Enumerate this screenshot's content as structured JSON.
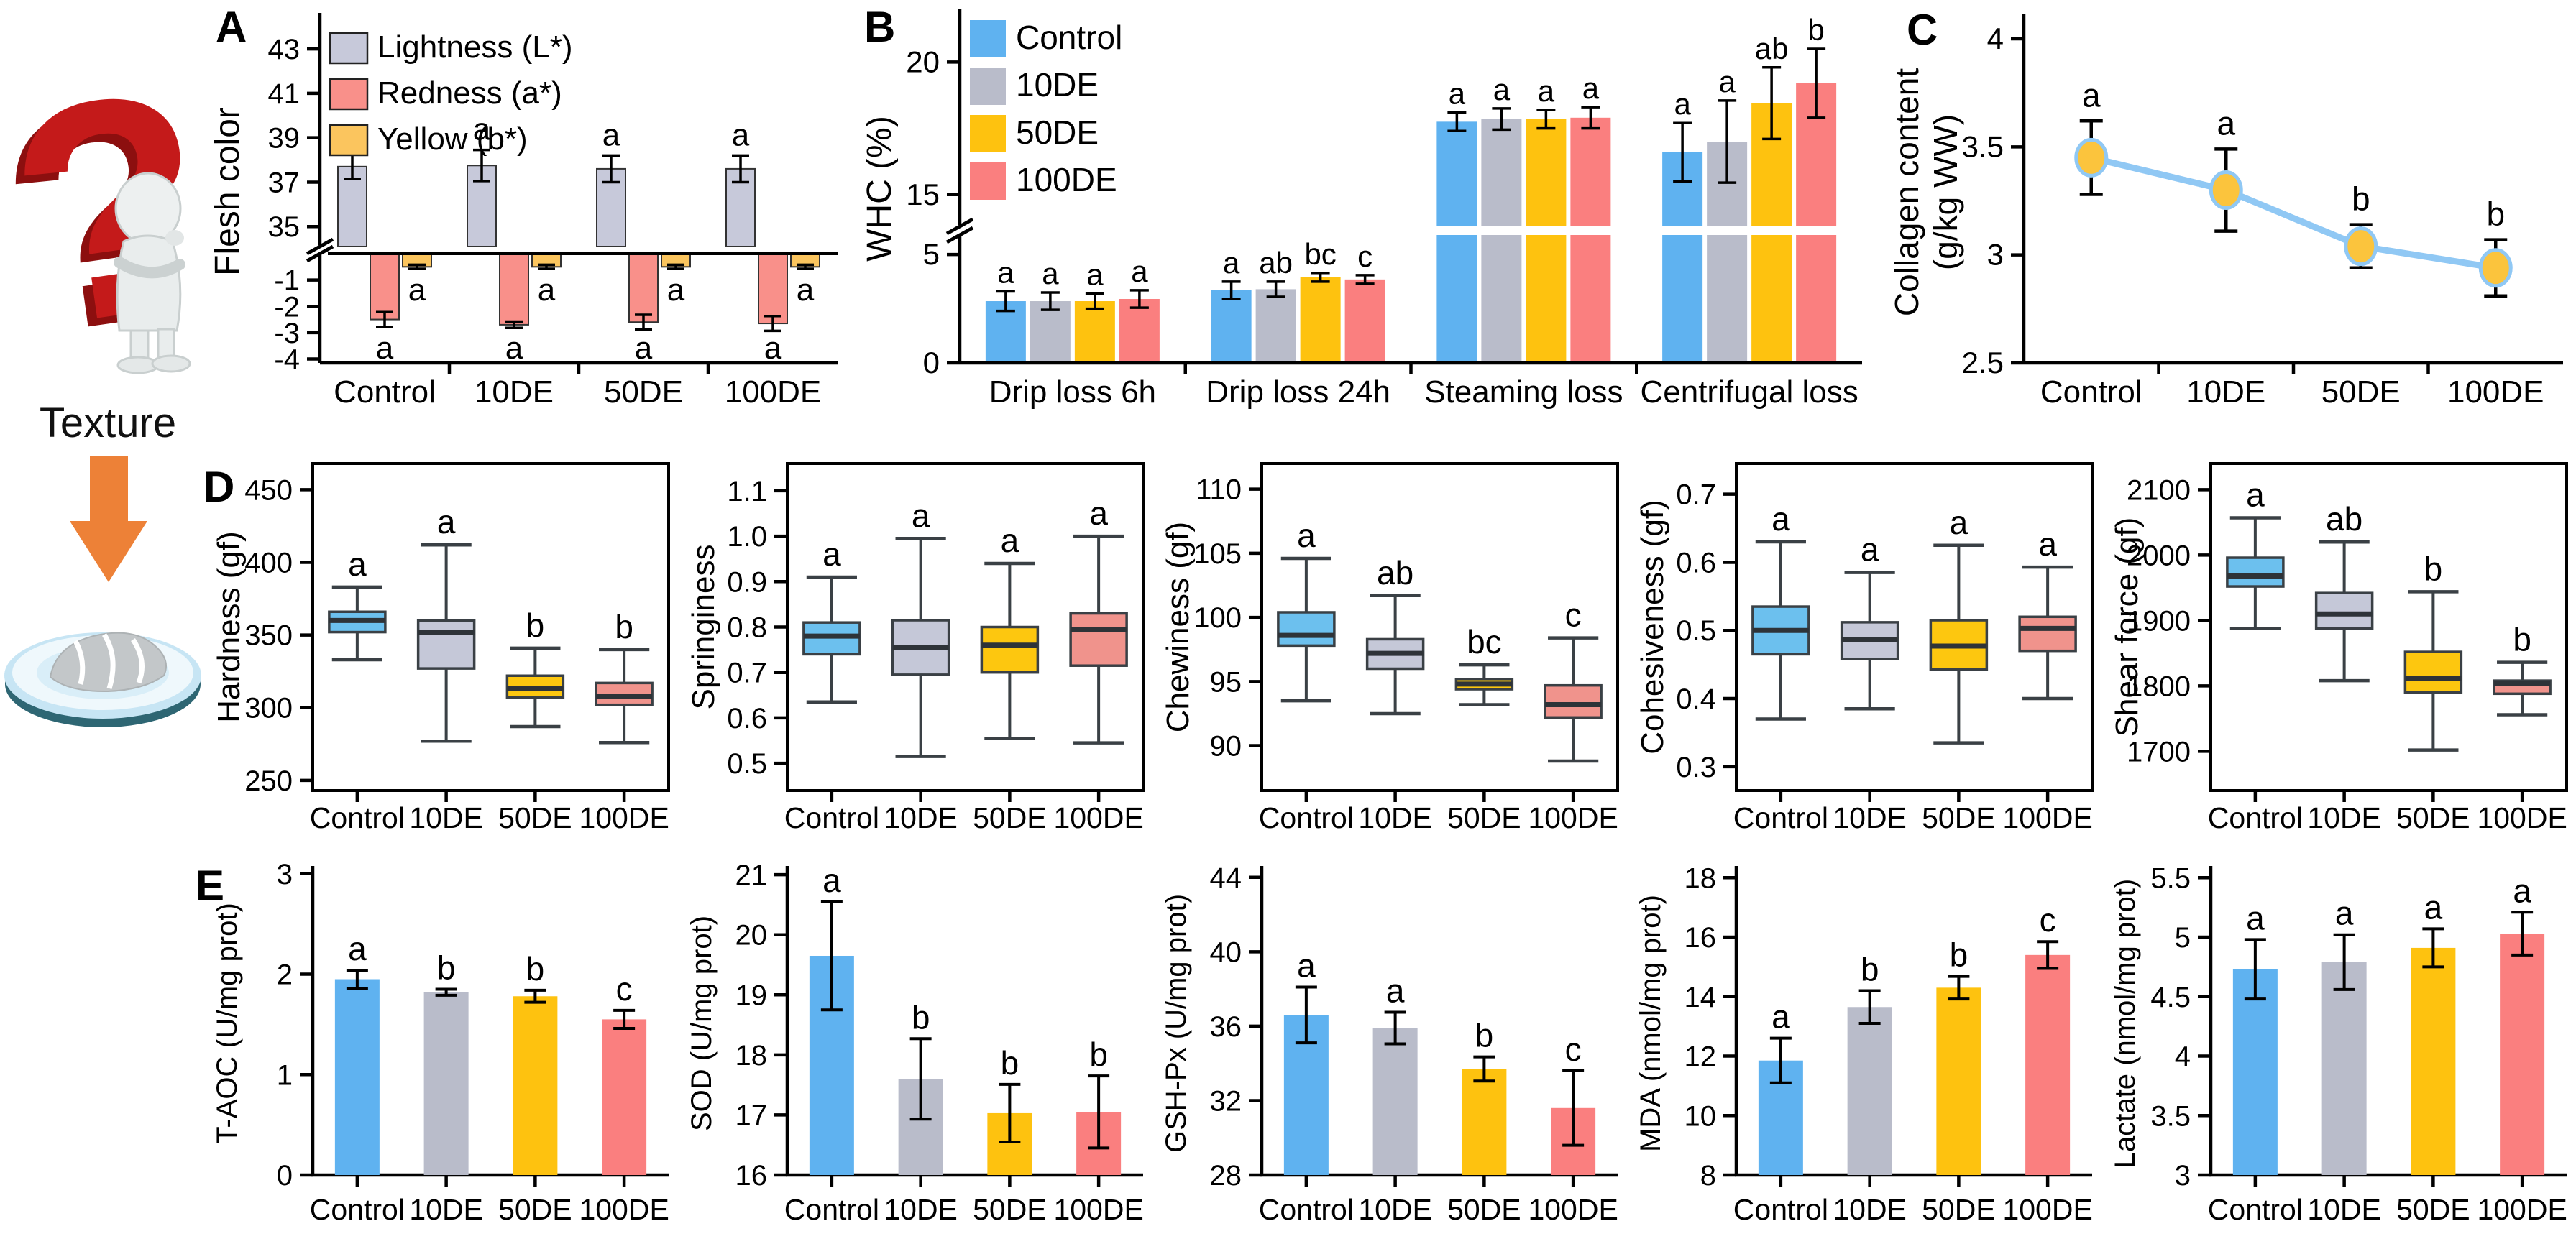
{
  "left_art": {
    "texture_label": "Texture"
  },
  "panel_labels": {
    "a": "A",
    "b": "B",
    "c": "C",
    "d": "D",
    "e": "E"
  },
  "groups": [
    "Control",
    "10DE",
    "50DE",
    "100DE"
  ],
  "colors": {
    "group_fills": [
      "#5FB2F0",
      "#B9BCCA",
      "#FEC20F",
      "#FA7F7F"
    ],
    "box_fills": [
      "#6CC0EE",
      "#C5C8D8",
      "#FDC70F",
      "#F0938C"
    ],
    "accent_arrow": "#ED8137",
    "question_red": "#C41A1A"
  },
  "chart_data": [
    {
      "id": "flesh_color",
      "kind": "flesh-broken",
      "panel": "A",
      "type": "bar",
      "ylabel": "Flesh color",
      "categories": [
        "Control",
        "10DE",
        "50DE",
        "100DE"
      ],
      "top_range": [
        34.1,
        44.3
      ],
      "bottom_range": [
        -4.15,
        0
      ],
      "top_ticks": [
        35,
        37,
        39,
        41,
        43
      ],
      "bottom_ticks": [
        -1,
        -2,
        -3,
        -4
      ],
      "series": [
        {
          "name": "Lightness (L*)",
          "color": "#C7C9DA",
          "values": [
            37.7,
            37.75,
            37.6,
            37.6
          ],
          "errors": [
            0.55,
            0.7,
            0.6,
            0.6
          ],
          "letters": [
            "a",
            "a",
            "a",
            "a"
          ]
        },
        {
          "name": "Redness (a*)",
          "color": "#F9908A",
          "values": [
            -2.5,
            -2.7,
            -2.6,
            -2.65
          ],
          "errors": [
            0.28,
            0.12,
            0.28,
            0.28
          ],
          "letters": [
            "a",
            "a",
            "a",
            "a"
          ]
        },
        {
          "name": "Yellow (b*)",
          "color": "#FBC55E",
          "values": [
            -0.5,
            -0.5,
            -0.5,
            -0.5
          ],
          "errors": [
            0.08,
            0.08,
            0.08,
            0.08
          ],
          "letters": [
            "a",
            "a",
            "a",
            "a"
          ]
        }
      ]
    },
    {
      "id": "whc",
      "kind": "grouped-bar-broken",
      "panel": "B",
      "type": "bar",
      "ylabel": "WHC (%)",
      "categories": [
        "Drip loss 6h",
        "Drip loss 24h",
        "Steaming loss",
        "Centrifugal loss"
      ],
      "groups": [
        "Control",
        "10DE",
        "50DE",
        "100DE"
      ],
      "top_range": [
        13.8,
        21.8
      ],
      "bottom_range": [
        0,
        5.9
      ],
      "top_ticks": [
        15,
        20
      ],
      "bottom_ticks": [
        0,
        5
      ],
      "values": [
        [
          2.85,
          3.35,
          17.75,
          16.6
        ],
        [
          2.85,
          3.4,
          17.85,
          17.0
        ],
        [
          2.85,
          3.95,
          17.85,
          18.45
        ],
        [
          2.95,
          3.85,
          17.9,
          19.2
        ]
      ],
      "errors": [
        [
          0.45,
          0.4,
          0.35,
          1.1
        ],
        [
          0.4,
          0.35,
          0.4,
          1.55
        ],
        [
          0.35,
          0.2,
          0.35,
          1.35
        ],
        [
          0.4,
          0.2,
          0.4,
          1.3
        ]
      ],
      "letters": [
        [
          "a",
          "a",
          "a",
          "a"
        ],
        [
          "a",
          "ab",
          "a",
          "a"
        ],
        [
          "a",
          "bc",
          "a",
          "ab"
        ],
        [
          "a",
          "c",
          "a",
          "b"
        ]
      ]
    },
    {
      "id": "collagen",
      "kind": "line",
      "panel": "C",
      "type": "line",
      "ylabel_lines": [
        "Collagen content",
        "(g/kg WW)"
      ],
      "categories": [
        "Control",
        "10DE",
        "50DE",
        "100DE"
      ],
      "range": [
        2.5,
        4.08
      ],
      "tick_values": [
        2.5,
        3,
        3.5,
        4
      ],
      "tick_labels": [
        "2.5",
        "3",
        "3.5",
        "4"
      ],
      "values": [
        3.45,
        3.3,
        3.04,
        2.94
      ],
      "errors": [
        0.17,
        0.19,
        0.1,
        0.13
      ],
      "letters": [
        "a",
        "a",
        "b",
        "b"
      ],
      "line_color": "#90C8F4",
      "marker_fill": "#FBC43D"
    },
    {
      "id": "hardness",
      "kind": "box",
      "panel": "D",
      "type": "box",
      "ylabel": "Hardness (gf)",
      "categories": [
        "Control",
        "10DE",
        "50DE",
        "100DE"
      ],
      "range": [
        243,
        468
      ],
      "tick_values": [
        250,
        300,
        350,
        400,
        450
      ],
      "tick_labels": [
        "250",
        "300",
        "350",
        "400",
        "450"
      ],
      "boxes": [
        {
          "group": "Control",
          "low": 333,
          "q1": 352,
          "med": 360,
          "q3": 366,
          "high": 383,
          "letter": "a"
        },
        {
          "group": "10DE",
          "low": 277,
          "q1": 327,
          "med": 352,
          "q3": 360,
          "high": 412,
          "letter": "a"
        },
        {
          "group": "50DE",
          "low": 287,
          "q1": 307,
          "med": 313,
          "q3": 322,
          "high": 341,
          "letter": "b"
        },
        {
          "group": "100DE",
          "low": 276,
          "q1": 302,
          "med": 308,
          "q3": 317,
          "high": 340,
          "letter": "b"
        }
      ]
    },
    {
      "id": "springiness",
      "kind": "box",
      "panel": "D",
      "type": "box",
      "ylabel": "Springiness",
      "categories": [
        "Control",
        "10DE",
        "50DE",
        "100DE"
      ],
      "range": [
        0.44,
        1.16
      ],
      "tick_values": [
        0.5,
        0.6,
        0.7,
        0.8,
        0.9,
        1.0,
        1.1
      ],
      "tick_labels": [
        "0.5",
        "0.6",
        "0.7",
        "0.8",
        "0.9",
        "1.0",
        "1.1"
      ],
      "boxes": [
        {
          "group": "Control",
          "low": 0.635,
          "q1": 0.74,
          "med": 0.78,
          "q3": 0.81,
          "high": 0.91,
          "letter": "a"
        },
        {
          "group": "10DE",
          "low": 0.515,
          "q1": 0.695,
          "med": 0.755,
          "q3": 0.815,
          "high": 0.995,
          "letter": "a"
        },
        {
          "group": "50DE",
          "low": 0.555,
          "q1": 0.7,
          "med": 0.76,
          "q3": 0.8,
          "high": 0.94,
          "letter": "a"
        },
        {
          "group": "100DE",
          "low": 0.545,
          "q1": 0.715,
          "med": 0.795,
          "q3": 0.83,
          "high": 1.0,
          "letter": "a"
        }
      ]
    },
    {
      "id": "chewiness",
      "kind": "box",
      "panel": "D",
      "type": "box",
      "ylabel": "Chewiness (gf)",
      "categories": [
        "Control",
        "10DE",
        "50DE",
        "100DE"
      ],
      "range": [
        86.5,
        112
      ],
      "tick_values": [
        90,
        95,
        100,
        105,
        110
      ],
      "tick_labels": [
        "90",
        "95",
        "100",
        "105",
        "110"
      ],
      "boxes": [
        {
          "group": "Control",
          "low": 93.5,
          "q1": 97.8,
          "med": 98.6,
          "q3": 100.4,
          "high": 104.6,
          "letter": "a"
        },
        {
          "group": "10DE",
          "low": 92.5,
          "q1": 96.0,
          "med": 97.2,
          "q3": 98.3,
          "high": 101.7,
          "letter": "ab"
        },
        {
          "group": "50DE",
          "low": 93.2,
          "q1": 94.4,
          "med": 94.8,
          "q3": 95.2,
          "high": 96.3,
          "letter": "bc"
        },
        {
          "group": "100DE",
          "low": 88.8,
          "q1": 92.2,
          "med": 93.2,
          "q3": 94.7,
          "high": 98.4,
          "letter": "c"
        }
      ]
    },
    {
      "id": "cohesiveness",
      "kind": "box",
      "panel": "D",
      "type": "box",
      "ylabel": "Cohesiveness (gf)",
      "categories": [
        "Control",
        "10DE",
        "50DE",
        "100DE"
      ],
      "range": [
        0.265,
        0.745
      ],
      "tick_values": [
        0.3,
        0.4,
        0.5,
        0.6,
        0.7
      ],
      "tick_labels": [
        "0.3",
        "0.4",
        "0.5",
        "0.6",
        "0.7"
      ],
      "boxes": [
        {
          "group": "Control",
          "low": 0.37,
          "q1": 0.465,
          "med": 0.5,
          "q3": 0.535,
          "high": 0.63,
          "letter": "a"
        },
        {
          "group": "10DE",
          "low": 0.385,
          "q1": 0.458,
          "med": 0.487,
          "q3": 0.512,
          "high": 0.585,
          "letter": "a"
        },
        {
          "group": "50DE",
          "low": 0.335,
          "q1": 0.443,
          "med": 0.477,
          "q3": 0.515,
          "high": 0.625,
          "letter": "a"
        },
        {
          "group": "100DE",
          "low": 0.4,
          "q1": 0.47,
          "med": 0.503,
          "q3": 0.52,
          "high": 0.593,
          "letter": "a"
        }
      ]
    },
    {
      "id": "shear_force",
      "kind": "box",
      "panel": "D",
      "type": "box",
      "ylabel": "Shear force (gf)",
      "categories": [
        "Control",
        "10DE",
        "50DE",
        "100DE"
      ],
      "range": [
        1640,
        2140
      ],
      "tick_values": [
        1700,
        1800,
        1900,
        2000,
        2100
      ],
      "tick_labels": [
        "1700",
        "1800",
        "1900",
        "2000",
        "2100"
      ],
      "boxes": [
        {
          "group": "Control",
          "low": 1888,
          "q1": 1952,
          "med": 1968,
          "q3": 1996,
          "high": 2057,
          "letter": "a"
        },
        {
          "group": "10DE",
          "low": 1808,
          "q1": 1888,
          "med": 1910,
          "q3": 1942,
          "high": 2020,
          "letter": "ab"
        },
        {
          "group": "50DE",
          "low": 1702,
          "q1": 1790,
          "med": 1812,
          "q3": 1852,
          "high": 1944,
          "letter": "b"
        },
        {
          "group": "100DE",
          "low": 1756,
          "q1": 1788,
          "med": 1804,
          "q3": 1808,
          "high": 1836,
          "letter": "b"
        }
      ]
    },
    {
      "id": "taoc",
      "kind": "bar",
      "panel": "E",
      "type": "bar",
      "ylabel": "T-AOC (U/mg prot)",
      "categories": [
        "Control",
        "10DE",
        "50DE",
        "100DE"
      ],
      "range": [
        0,
        3.02
      ],
      "tick_values": [
        0,
        1,
        2,
        3
      ],
      "tick_labels": [
        "0",
        "1",
        "2",
        "3"
      ],
      "values": [
        1.95,
        1.82,
        1.78,
        1.55
      ],
      "errors": [
        0.09,
        0.03,
        0.06,
        0.09
      ],
      "letters": [
        "a",
        "b",
        "b",
        "c"
      ]
    },
    {
      "id": "sod",
      "kind": "bar",
      "panel": "E",
      "type": "bar",
      "ylabel": "SOD (U/mg prot)",
      "categories": [
        "Control",
        "10DE",
        "50DE",
        "100DE"
      ],
      "range": [
        16,
        21.05
      ],
      "tick_values": [
        16,
        17,
        18,
        19,
        20,
        21
      ],
      "tick_labels": [
        "16",
        "17",
        "18",
        "19",
        "20",
        "21"
      ],
      "values": [
        19.65,
        17.6,
        17.03,
        17.05
      ],
      "errors": [
        0.9,
        0.67,
        0.48,
        0.6
      ],
      "letters": [
        "a",
        "b",
        "b",
        "b"
      ]
    },
    {
      "id": "gshpx",
      "kind": "bar",
      "panel": "E",
      "type": "bar",
      "ylabel": "GSH-Px (U/mg prot)",
      "categories": [
        "Control",
        "10DE",
        "50DE",
        "100DE"
      ],
      "range": [
        28,
        44.3
      ],
      "tick_values": [
        28,
        32,
        36,
        40,
        44
      ],
      "tick_labels": [
        "28",
        "32",
        "36",
        "40",
        "44"
      ],
      "values": [
        36.6,
        35.9,
        33.7,
        31.6
      ],
      "errors": [
        1.5,
        0.85,
        0.65,
        2.0
      ],
      "letters": [
        "a",
        "a",
        "b",
        "c"
      ]
    },
    {
      "id": "mda",
      "kind": "bar",
      "panel": "E",
      "type": "bar",
      "ylabel": "MDA (nmol/mg prot)",
      "categories": [
        "Control",
        "10DE",
        "50DE",
        "100DE"
      ],
      "range": [
        8,
        18.2
      ],
      "tick_values": [
        8,
        10,
        12,
        14,
        16,
        18
      ],
      "tick_labels": [
        "8",
        "10",
        "12",
        "14",
        "16",
        "18"
      ],
      "values": [
        11.85,
        13.65,
        14.3,
        15.4
      ],
      "errors": [
        0.75,
        0.55,
        0.38,
        0.45
      ],
      "letters": [
        "a",
        "b",
        "b",
        "c"
      ]
    },
    {
      "id": "lactate",
      "kind": "bar",
      "panel": "E",
      "type": "bar",
      "ylabel": "Lactate (nmol/mg prot)",
      "categories": [
        "Control",
        "10DE",
        "50DE",
        "100DE"
      ],
      "range": [
        3,
        5.55
      ],
      "tick_values": [
        3,
        3.5,
        4,
        4.5,
        5,
        5.5
      ],
      "tick_labels": [
        "3",
        "3.5",
        "4",
        "4.5",
        "5",
        "5.5"
      ],
      "values": [
        4.73,
        4.79,
        4.91,
        5.03
      ],
      "errors": [
        0.25,
        0.23,
        0.16,
        0.18
      ],
      "letters": [
        "a",
        "a",
        "a",
        "a"
      ]
    }
  ]
}
